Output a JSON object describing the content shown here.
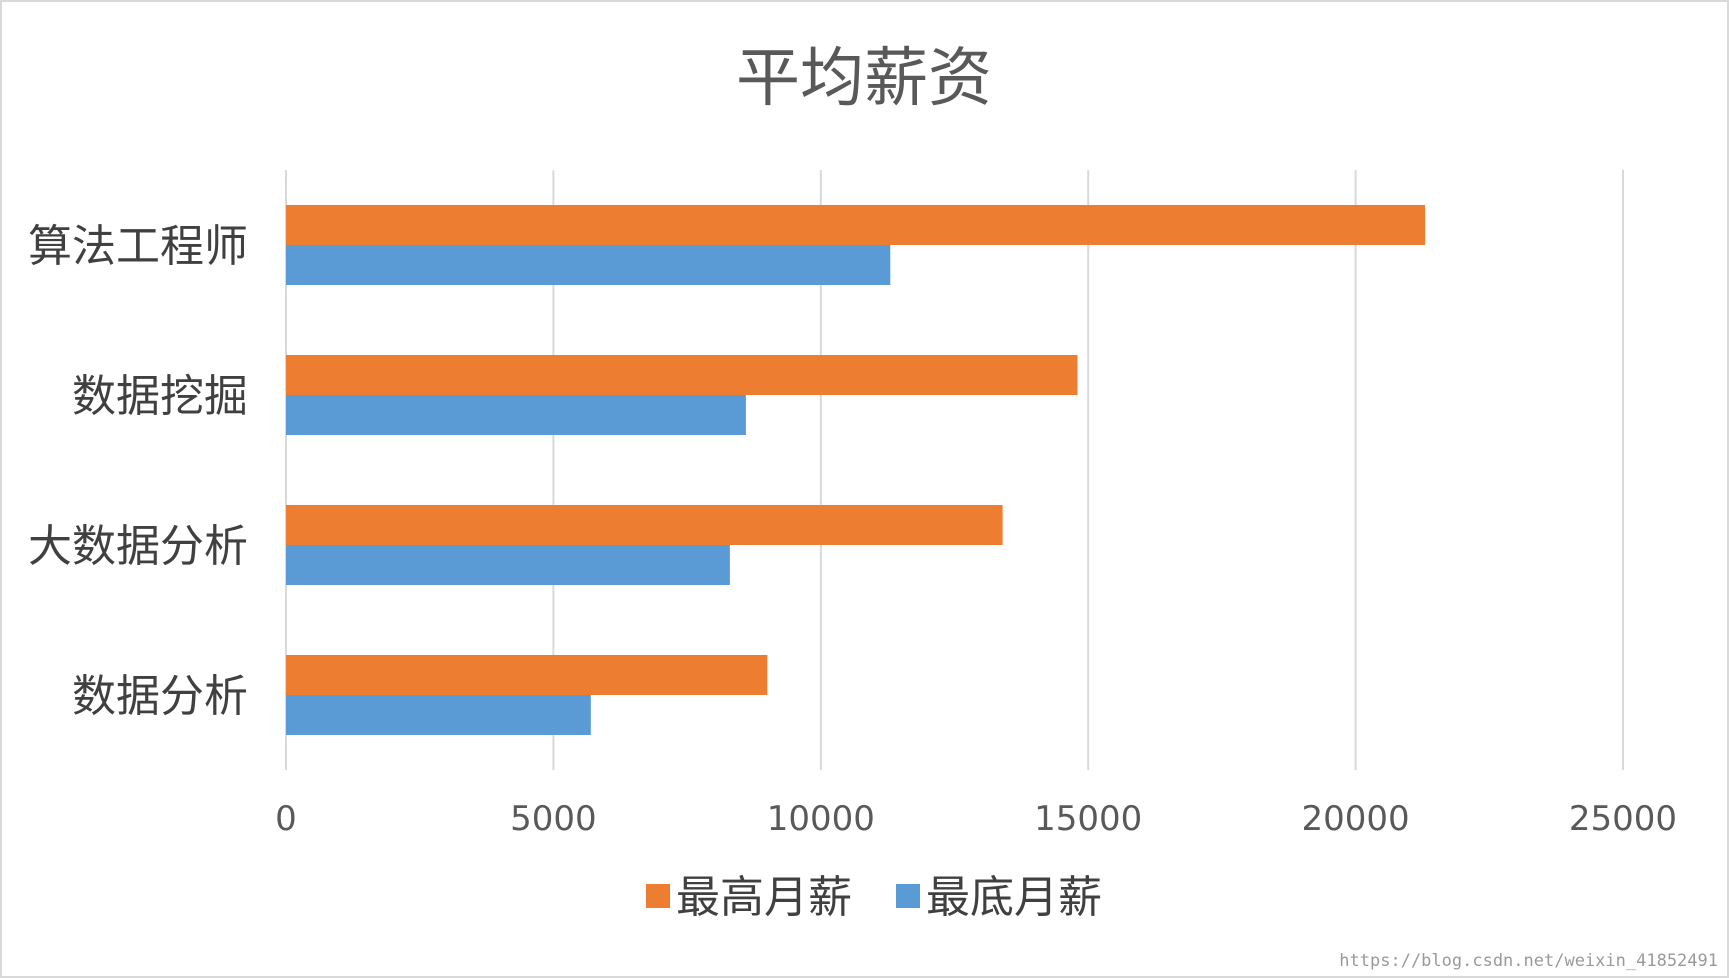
{
  "chart_data": {
    "type": "bar",
    "orientation": "horizontal",
    "title": "平均薪资",
    "categories": [
      "算法工程师",
      "数据挖掘",
      "大数据分析",
      "数据分析"
    ],
    "series": [
      {
        "name": "最高月薪",
        "color": "#ed7d31",
        "values": [
          21300,
          14800,
          13400,
          9000
        ]
      },
      {
        "name": "最底月薪",
        "color": "#5b9bd5",
        "values": [
          11300,
          8600,
          8300,
          5700
        ]
      }
    ],
    "xlim": [
      0,
      25000
    ],
    "xticks": [
      0,
      5000,
      10000,
      15000,
      20000,
      25000
    ],
    "grid": true,
    "legend_position": "bottom"
  },
  "watermark": "https://blog.csdn.net/weixin_41852491"
}
